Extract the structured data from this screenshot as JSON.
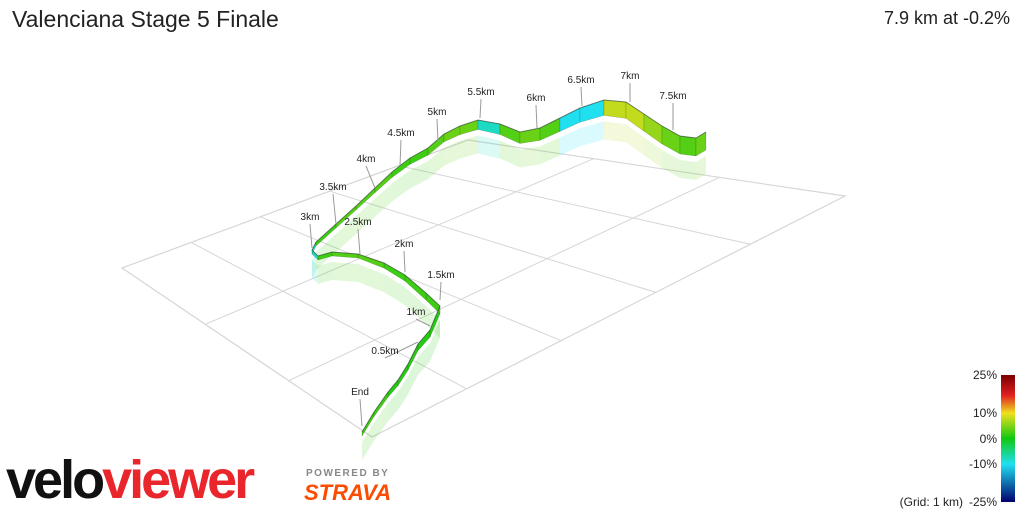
{
  "title": "Valenciana Stage 5 Finale",
  "readout": "7.9 km at -0.2%",
  "grid_note": "(Grid: 1 km)",
  "brand": {
    "velo": "velo",
    "viewer": "viewer",
    "powered_by": "POWERED BY",
    "strava": "STRAVA"
  },
  "colors": {
    "grid": "#d6d6d6",
    "logo_red": "#e8262b",
    "strava_orange": "#fc4c02"
  },
  "chart_data": {
    "type": "line",
    "title": "Valenciana Stage 5 Finale",
    "distance_labels": [
      "End",
      "0.5km",
      "1km",
      "1.5km",
      "2km",
      "2.5km",
      "3km",
      "3.5km",
      "4km",
      "4.5km",
      "5km",
      "5.5km",
      "6km",
      "6.5km",
      "7km",
      "7.5km"
    ],
    "series": [
      {
        "x": [
          0,
          0.5,
          1,
          1.5,
          2,
          2.5,
          3,
          3.5,
          4,
          4.5,
          5,
          5.5,
          6,
          6.5,
          7,
          7.5,
          7.9
        ],
        "gradient_pct": [
          2,
          1,
          1,
          2,
          3,
          2,
          -8,
          3,
          2,
          3,
          4,
          -8,
          4,
          -10,
          8,
          4,
          -0.2
        ]
      }
    ],
    "legend": {
      "type": "gradient colorbar",
      "placement": "bottom-right",
      "ticks": [
        "25%",
        "10%",
        "0%",
        "-10%",
        "-25%"
      ],
      "stops": [
        {
          "value": 25,
          "color": "#7a0000"
        },
        {
          "value": 17,
          "color": "#e02020"
        },
        {
          "value": 10,
          "color": "#f0e020"
        },
        {
          "value": 0,
          "color": "#10c810"
        },
        {
          "value": -10,
          "color": "#20e0f0"
        },
        {
          "value": -25,
          "color": "#00006e"
        }
      ]
    }
  }
}
